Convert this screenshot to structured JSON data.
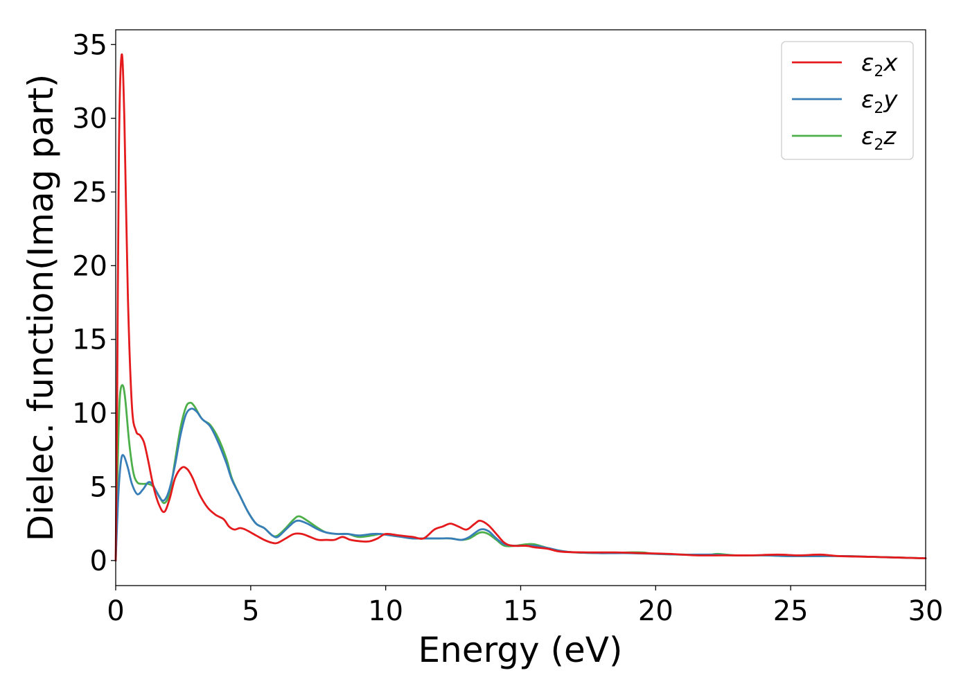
{
  "chart_data": {
    "type": "line",
    "xlabel": "Energy (eV)",
    "ylabel": "Dielec. function(Imag part)",
    "xlim": [
      0,
      30
    ],
    "ylim": [
      -1.7,
      36
    ],
    "xticks": [
      0,
      5,
      10,
      15,
      20,
      25,
      30
    ],
    "yticks": [
      0,
      5,
      10,
      15,
      20,
      25,
      30,
      35
    ],
    "grid": false,
    "legend_position": "top-right",
    "series": [
      {
        "name": "ε2x",
        "legend": {
          "base": "ε",
          "sub": "2",
          "suffix": "x"
        },
        "color": "#e41a1c",
        "points": [
          [
            0,
            0
          ],
          [
            0.05,
            10
          ],
          [
            0.12,
            28
          ],
          [
            0.22,
            34.3
          ],
          [
            0.32,
            30
          ],
          [
            0.45,
            18
          ],
          [
            0.6,
            10.5
          ],
          [
            0.75,
            8.8
          ],
          [
            0.9,
            8.5
          ],
          [
            1.05,
            8
          ],
          [
            1.2,
            6.8
          ],
          [
            1.4,
            5
          ],
          [
            1.6,
            3.8
          ],
          [
            1.8,
            3.3
          ],
          [
            2.0,
            4.2
          ],
          [
            2.2,
            5.6
          ],
          [
            2.45,
            6.3
          ],
          [
            2.65,
            6.2
          ],
          [
            2.85,
            5.6
          ],
          [
            3.1,
            4.5
          ],
          [
            3.4,
            3.6
          ],
          [
            3.7,
            3.1
          ],
          [
            4.0,
            2.8
          ],
          [
            4.2,
            2.3
          ],
          [
            4.4,
            2.1
          ],
          [
            4.6,
            2.2
          ],
          [
            4.8,
            2.1
          ],
          [
            5.2,
            1.7
          ],
          [
            5.5,
            1.4
          ],
          [
            5.8,
            1.2
          ],
          [
            6.0,
            1.2
          ],
          [
            6.3,
            1.5
          ],
          [
            6.6,
            1.8
          ],
          [
            6.9,
            1.8
          ],
          [
            7.2,
            1.6
          ],
          [
            7.5,
            1.4
          ],
          [
            7.8,
            1.4
          ],
          [
            8.1,
            1.4
          ],
          [
            8.4,
            1.6
          ],
          [
            8.7,
            1.4
          ],
          [
            9.1,
            1.3
          ],
          [
            9.4,
            1.3
          ],
          [
            9.7,
            1.5
          ],
          [
            10.0,
            1.8
          ],
          [
            10.5,
            1.7
          ],
          [
            11.0,
            1.6
          ],
          [
            11.4,
            1.5
          ],
          [
            11.8,
            2.1
          ],
          [
            12.1,
            2.3
          ],
          [
            12.4,
            2.5
          ],
          [
            12.7,
            2.3
          ],
          [
            13.0,
            2.1
          ],
          [
            13.3,
            2.5
          ],
          [
            13.5,
            2.7
          ],
          [
            13.8,
            2.4
          ],
          [
            14.1,
            1.8
          ],
          [
            14.4,
            1.2
          ],
          [
            14.7,
            1.0
          ],
          [
            15.2,
            1.0
          ],
          [
            15.5,
            0.9
          ],
          [
            16.0,
            0.8
          ],
          [
            16.5,
            0.6
          ],
          [
            17.5,
            0.55
          ],
          [
            18.5,
            0.55
          ],
          [
            19.5,
            0.5
          ],
          [
            20.5,
            0.45
          ],
          [
            21.5,
            0.35
          ],
          [
            22.5,
            0.35
          ],
          [
            23.5,
            0.35
          ],
          [
            24.5,
            0.4
          ],
          [
            25.3,
            0.35
          ],
          [
            26.1,
            0.4
          ],
          [
            26.8,
            0.3
          ],
          [
            28,
            0.25
          ],
          [
            29,
            0.2
          ],
          [
            30,
            0.15
          ]
        ]
      },
      {
        "name": "ε2y",
        "legend": {
          "base": "ε",
          "sub": "2",
          "suffix": "y"
        },
        "color": "#377eb8",
        "points": [
          [
            0,
            0
          ],
          [
            0.1,
            4.5
          ],
          [
            0.2,
            6.8
          ],
          [
            0.3,
            7.1
          ],
          [
            0.45,
            6.3
          ],
          [
            0.6,
            5.2
          ],
          [
            0.8,
            4.5
          ],
          [
            1.0,
            4.8
          ],
          [
            1.2,
            5.3
          ],
          [
            1.35,
            5.2
          ],
          [
            1.5,
            4.7
          ],
          [
            1.7,
            4.1
          ],
          [
            1.85,
            4.2
          ],
          [
            2.0,
            4.9
          ],
          [
            2.2,
            6.5
          ],
          [
            2.4,
            8.5
          ],
          [
            2.6,
            9.9
          ],
          [
            2.8,
            10.3
          ],
          [
            3.0,
            10.1
          ],
          [
            3.2,
            9.6
          ],
          [
            3.5,
            9.1
          ],
          [
            3.8,
            8.0
          ],
          [
            4.1,
            6.6
          ],
          [
            4.3,
            5.5
          ],
          [
            4.6,
            4.4
          ],
          [
            4.9,
            3.3
          ],
          [
            5.2,
            2.5
          ],
          [
            5.5,
            2.2
          ],
          [
            5.8,
            1.7
          ],
          [
            6.0,
            1.6
          ],
          [
            6.3,
            2.1
          ],
          [
            6.6,
            2.6
          ],
          [
            6.8,
            2.7
          ],
          [
            7.1,
            2.5
          ],
          [
            7.5,
            2.1
          ],
          [
            7.8,
            1.9
          ],
          [
            8.2,
            1.8
          ],
          [
            8.6,
            1.8
          ],
          [
            9.0,
            1.7
          ],
          [
            9.5,
            1.8
          ],
          [
            9.8,
            1.8
          ],
          [
            10.2,
            1.7
          ],
          [
            10.6,
            1.6
          ],
          [
            11.0,
            1.5
          ],
          [
            11.5,
            1.5
          ],
          [
            12.0,
            1.5
          ],
          [
            12.4,
            1.5
          ],
          [
            12.8,
            1.4
          ],
          [
            13.1,
            1.6
          ],
          [
            13.5,
            2.1
          ],
          [
            13.8,
            2.0
          ],
          [
            14.1,
            1.5
          ],
          [
            14.4,
            1.1
          ],
          [
            14.8,
            1.0
          ],
          [
            15.2,
            1.0
          ],
          [
            15.5,
            1.0
          ],
          [
            16.0,
            0.85
          ],
          [
            16.5,
            0.65
          ],
          [
            17.0,
            0.55
          ],
          [
            18,
            0.5
          ],
          [
            19,
            0.5
          ],
          [
            20,
            0.45
          ],
          [
            21,
            0.4
          ],
          [
            22,
            0.4
          ],
          [
            23,
            0.35
          ],
          [
            24,
            0.35
          ],
          [
            25,
            0.3
          ],
          [
            26,
            0.3
          ],
          [
            27,
            0.3
          ],
          [
            28,
            0.25
          ],
          [
            29,
            0.2
          ],
          [
            30,
            0.15
          ]
        ]
      },
      {
        "name": "ε2z",
        "legend": {
          "base": "ε",
          "sub": "2",
          "suffix": "z"
        },
        "color": "#4daf4a",
        "points": [
          [
            0,
            0
          ],
          [
            0.08,
            7
          ],
          [
            0.15,
            11
          ],
          [
            0.25,
            11.9
          ],
          [
            0.35,
            11
          ],
          [
            0.5,
            8
          ],
          [
            0.65,
            6
          ],
          [
            0.8,
            5.3
          ],
          [
            1.0,
            5.2
          ],
          [
            1.2,
            5.2
          ],
          [
            1.4,
            5.0
          ],
          [
            1.6,
            4.4
          ],
          [
            1.8,
            3.9
          ],
          [
            2.0,
            4.6
          ],
          [
            2.2,
            6.8
          ],
          [
            2.4,
            9.0
          ],
          [
            2.6,
            10.4
          ],
          [
            2.75,
            10.7
          ],
          [
            2.9,
            10.5
          ],
          [
            3.2,
            9.6
          ],
          [
            3.5,
            9.2
          ],
          [
            3.8,
            8.3
          ],
          [
            4.1,
            6.9
          ],
          [
            4.3,
            5.6
          ],
          [
            4.6,
            4.4
          ],
          [
            4.9,
            3.3
          ],
          [
            5.2,
            2.5
          ],
          [
            5.5,
            2.2
          ],
          [
            5.8,
            1.7
          ],
          [
            6.0,
            1.7
          ],
          [
            6.3,
            2.2
          ],
          [
            6.6,
            2.8
          ],
          [
            6.8,
            3.0
          ],
          [
            7.1,
            2.7
          ],
          [
            7.5,
            2.2
          ],
          [
            7.8,
            1.9
          ],
          [
            8.2,
            1.8
          ],
          [
            8.6,
            1.8
          ],
          [
            9.0,
            1.6
          ],
          [
            9.5,
            1.7
          ],
          [
            9.8,
            1.8
          ],
          [
            10.2,
            1.7
          ],
          [
            10.6,
            1.6
          ],
          [
            11.0,
            1.5
          ],
          [
            11.5,
            1.5
          ],
          [
            12.0,
            1.5
          ],
          [
            12.4,
            1.5
          ],
          [
            12.8,
            1.4
          ],
          [
            13.1,
            1.5
          ],
          [
            13.5,
            1.9
          ],
          [
            13.8,
            1.8
          ],
          [
            14.1,
            1.4
          ],
          [
            14.4,
            1.0
          ],
          [
            14.8,
            1.0
          ],
          [
            15.2,
            1.1
          ],
          [
            15.5,
            1.1
          ],
          [
            16.0,
            0.85
          ],
          [
            16.5,
            0.65
          ],
          [
            17.0,
            0.55
          ],
          [
            18,
            0.5
          ],
          [
            19,
            0.55
          ],
          [
            19.5,
            0.55
          ],
          [
            20,
            0.45
          ],
          [
            21,
            0.4
          ],
          [
            22,
            0.4
          ],
          [
            22.3,
            0.45
          ],
          [
            23,
            0.35
          ],
          [
            24,
            0.35
          ],
          [
            25,
            0.3
          ],
          [
            26,
            0.3
          ],
          [
            27,
            0.3
          ],
          [
            28,
            0.25
          ],
          [
            29,
            0.2
          ],
          [
            30,
            0.15
          ]
        ]
      }
    ]
  }
}
